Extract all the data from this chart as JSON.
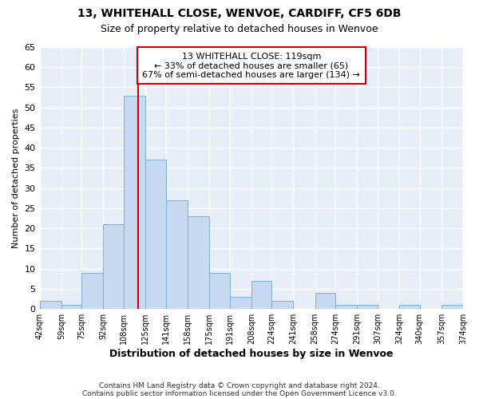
{
  "title": "13, WHITEHALL CLOSE, WENVOE, CARDIFF, CF5 6DB",
  "subtitle": "Size of property relative to detached houses in Wenvoe",
  "xlabel": "Distribution of detached houses by size in Wenvoe",
  "ylabel": "Number of detached properties",
  "bin_edges": [
    42,
    59,
    75,
    92,
    108,
    125,
    141,
    158,
    175,
    191,
    208,
    224,
    241,
    258,
    274,
    291,
    307,
    324,
    340,
    357,
    374
  ],
  "bin_labels": [
    "42sqm",
    "59sqm",
    "75sqm",
    "92sqm",
    "108sqm",
    "125sqm",
    "141sqm",
    "158sqm",
    "175sqm",
    "191sqm",
    "208sqm",
    "224sqm",
    "241sqm",
    "258sqm",
    "274sqm",
    "291sqm",
    "307sqm",
    "324sqm",
    "340sqm",
    "357sqm",
    "374sqm"
  ],
  "counts": [
    2,
    1,
    9,
    21,
    53,
    37,
    27,
    23,
    9,
    3,
    7,
    2,
    0,
    4,
    1,
    1,
    0,
    1,
    0,
    1
  ],
  "bar_facecolor": "#c6d9f0",
  "bar_edgecolor": "#7bafd4",
  "bg_color": "#e8eef7",
  "grid_color": "#ffffff",
  "vline_x": 119,
  "vline_color": "#cc0000",
  "annotation_title": "13 WHITEHALL CLOSE: 119sqm",
  "annotation_line1": "← 33% of detached houses are smaller (65)",
  "annotation_line2": "67% of semi-detached houses are larger (134) →",
  "annotation_box_edgecolor": "#cc0000",
  "annotation_box_facecolor": "#ffffff",
  "ylim": [
    0,
    65
  ],
  "yticks": [
    0,
    5,
    10,
    15,
    20,
    25,
    30,
    35,
    40,
    45,
    50,
    55,
    60,
    65
  ],
  "footer1": "Contains HM Land Registry data © Crown copyright and database right 2024.",
  "footer2": "Contains public sector information licensed under the Open Government Licence v3.0."
}
